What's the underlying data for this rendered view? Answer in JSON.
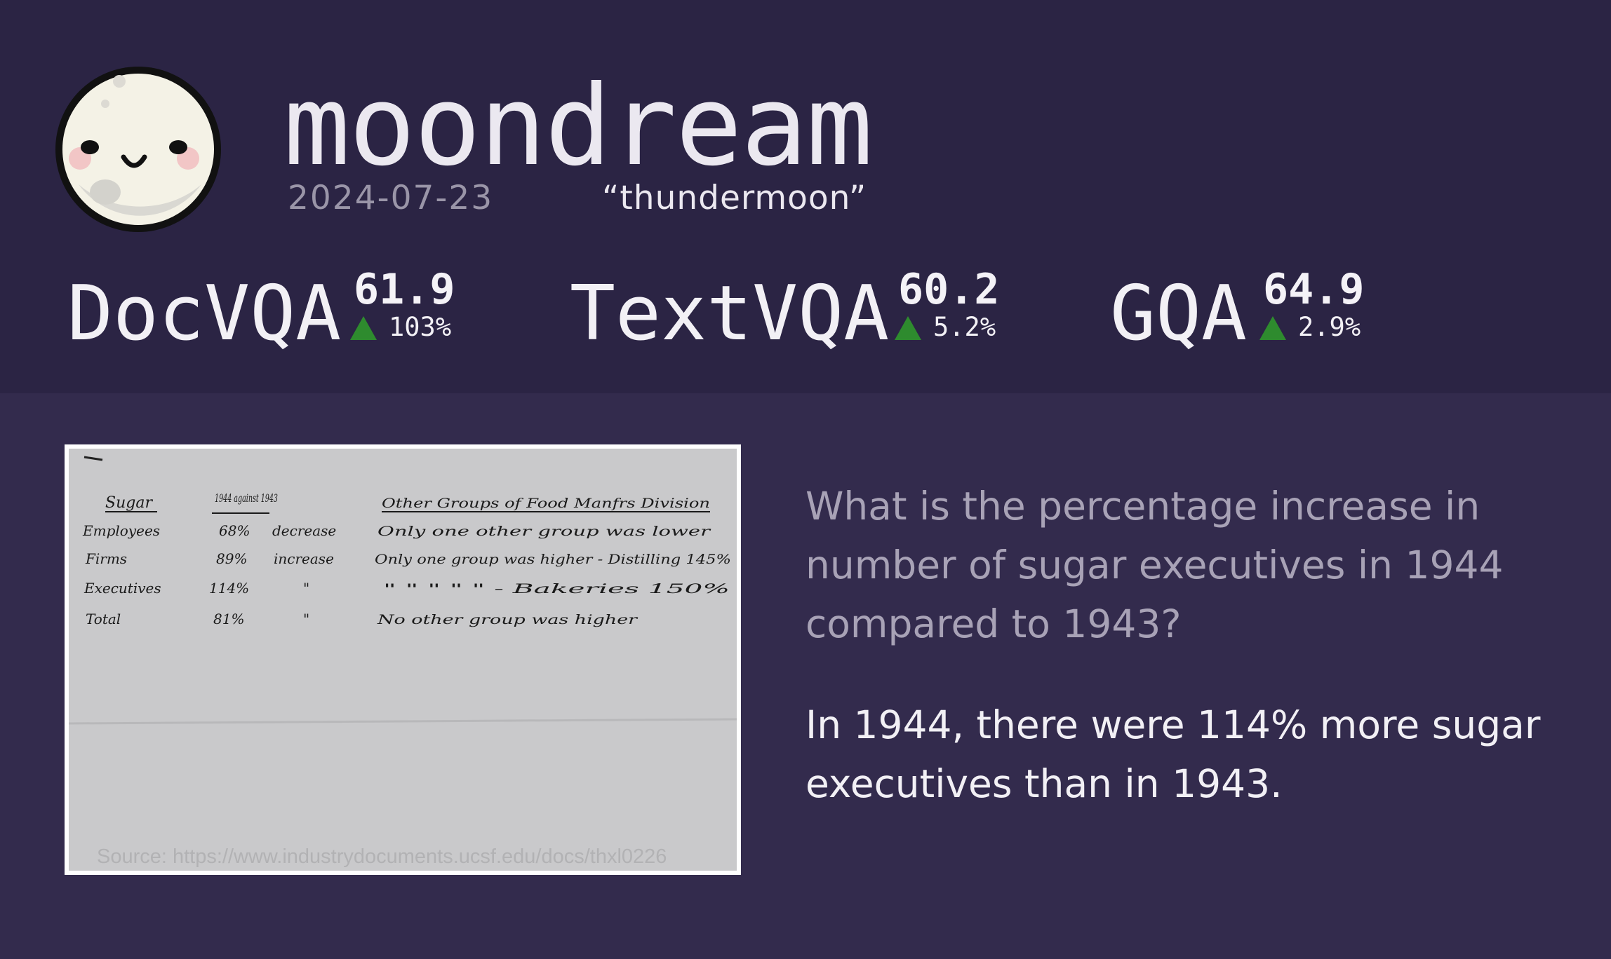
{
  "header": {
    "brand": "moondream",
    "date": "2024-07-23",
    "codename": "“thundermoon”"
  },
  "logo": {
    "icon": "smiling-moon-icon"
  },
  "metrics": [
    {
      "name": "DocVQA",
      "score": "61.9",
      "delta": "103%",
      "trend": "up"
    },
    {
      "name": "TextVQA",
      "score": "60.2",
      "delta": "5.2%",
      "trend": "up"
    },
    {
      "name": "GQA",
      "score": "64.9",
      "delta": "2.9%",
      "trend": "up"
    }
  ],
  "document": {
    "source": "Source: https://www.industrydocuments.ucsf.edu/docs/thxl0226",
    "heading_left": "Sugar",
    "heading_mid": "1944 against 1943",
    "heading_right": "Other Groups of Food Manfrs Division",
    "rows": [
      {
        "label": "Employees",
        "value": "68%",
        "change": "decrease",
        "note": "Only one other group was lower"
      },
      {
        "label": "Firms",
        "value": "89%",
        "change": "increase",
        "note": "Only one group was higher - Distilling 145%"
      },
      {
        "label": "Executives",
        "value": "114%",
        "change": "\"",
        "note": "\" \" \" \" \" - Bakeries 150%"
      },
      {
        "label": "Total",
        "value": "81%",
        "change": "\"",
        "note": "No other group was higher"
      }
    ]
  },
  "qa": {
    "question": "What is the percentage increase in number of sugar executives in 1944 compared to 1943?",
    "answer": "In 1944, there were 114% more sugar executives than in 1943."
  },
  "colors": {
    "header_bg": "#2b2444",
    "body_bg": "#332b4d",
    "up_arrow": "#2e8b2e",
    "question_text": "#a8a2b6",
    "answer_text": "#f2f0f5"
  }
}
